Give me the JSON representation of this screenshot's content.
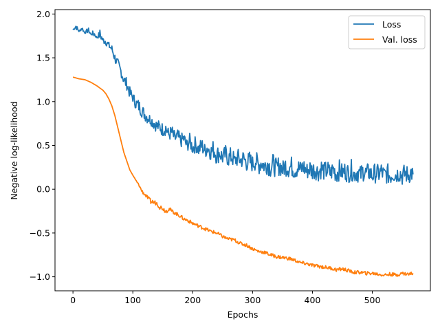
{
  "chart_data": {
    "type": "line",
    "xlabel": "Epochs",
    "ylabel": "Negative log-likelihood",
    "xlim": [
      -30,
      597
    ],
    "ylim": [
      -1.16,
      2.05
    ],
    "xticks": [
      0,
      100,
      200,
      300,
      400,
      500
    ],
    "xtick_labels": [
      "0",
      "100",
      "200",
      "300",
      "400",
      "500"
    ],
    "yticks": [
      -1.0,
      -0.5,
      0.0,
      0.5,
      1.0,
      1.5,
      2.0
    ],
    "ytick_labels": [
      "−1.0",
      "−0.5",
      "0.0",
      "0.5",
      "1.0",
      "1.5",
      "2.0"
    ],
    "grid": false,
    "legend_position": "top-right",
    "series": [
      {
        "name": "Loss",
        "color": "#1f77b4",
        "x": [
          0,
          5,
          10,
          15,
          20,
          25,
          30,
          35,
          40,
          45,
          50,
          55,
          60,
          65,
          70,
          75,
          80,
          85,
          90,
          95,
          100,
          105,
          110,
          115,
          120,
          125,
          130,
          135,
          140,
          145,
          150,
          155,
          160,
          165,
          170,
          175,
          180,
          185,
          190,
          195,
          200,
          205,
          210,
          215,
          220,
          225,
          230,
          235,
          240,
          245,
          250,
          255,
          260,
          265,
          270,
          275,
          280,
          285,
          290,
          295,
          300,
          305,
          310,
          315,
          320,
          325,
          330,
          335,
          340,
          345,
          350,
          355,
          360,
          365,
          370,
          375,
          380,
          385,
          390,
          395,
          400,
          405,
          410,
          415,
          420,
          425,
          430,
          435,
          440,
          445,
          450,
          455,
          460,
          465,
          470,
          475,
          480,
          485,
          490,
          495,
          500,
          505,
          510,
          515,
          520,
          525,
          530,
          535,
          540,
          545,
          550,
          555,
          560,
          565,
          568
        ],
        "y": [
          1.82,
          1.86,
          1.8,
          1.84,
          1.78,
          1.82,
          1.77,
          1.78,
          1.73,
          1.77,
          1.7,
          1.69,
          1.64,
          1.6,
          1.5,
          1.42,
          1.35,
          1.25,
          1.2,
          1.1,
          1.05,
          0.98,
          0.95,
          0.9,
          0.85,
          0.82,
          0.79,
          0.76,
          0.72,
          0.71,
          0.68,
          0.7,
          0.62,
          0.65,
          0.58,
          0.6,
          0.55,
          0.58,
          0.5,
          0.55,
          0.47,
          0.52,
          0.45,
          0.5,
          0.44,
          0.48,
          0.42,
          0.46,
          0.38,
          0.42,
          0.36,
          0.4,
          0.35,
          0.38,
          0.32,
          0.36,
          0.33,
          0.35,
          0.3,
          0.32,
          0.29,
          0.33,
          0.27,
          0.31,
          0.26,
          0.3,
          0.24,
          0.29,
          0.23,
          0.28,
          0.22,
          0.27,
          0.24,
          0.26,
          0.21,
          0.25,
          0.22,
          0.26,
          0.2,
          0.24,
          0.21,
          0.23,
          0.19,
          0.24,
          0.2,
          0.22,
          0.18,
          0.23,
          0.17,
          0.22,
          0.19,
          0.21,
          0.18,
          0.22,
          0.17,
          0.2,
          0.16,
          0.21,
          0.18,
          0.2,
          0.15,
          0.19,
          0.17,
          0.2,
          0.16,
          0.18,
          0.15,
          0.19,
          0.16,
          0.2,
          0.15,
          0.18,
          0.16,
          0.19,
          0.17
        ],
        "noise": [
          0.0,
          0.04,
          0.0,
          0.03,
          0.0,
          0.04,
          0.0,
          0.05,
          0.0,
          0.06,
          0.04,
          0.05,
          0.04,
          0.05,
          0.06,
          0.07,
          0.06,
          0.07,
          0.07,
          0.07,
          0.06,
          0.07,
          0.08,
          0.08,
          0.07,
          0.08,
          0.06,
          0.08,
          0.07,
          0.08,
          0.08,
          0.09,
          0.07,
          0.09,
          0.08,
          0.09,
          0.08,
          0.09,
          0.08,
          0.09,
          0.08,
          0.1,
          0.08,
          0.1,
          0.09,
          0.11,
          0.09,
          0.12,
          0.1,
          0.11,
          0.09,
          0.11,
          0.1,
          0.12,
          0.09,
          0.11,
          0.1,
          0.11,
          0.1,
          0.12,
          0.1,
          0.12,
          0.11,
          0.12,
          0.1,
          0.13,
          0.11,
          0.13,
          0.11,
          0.12,
          0.1,
          0.12,
          0.11,
          0.12,
          0.1,
          0.12,
          0.11,
          0.12,
          0.1,
          0.12,
          0.11,
          0.12,
          0.1,
          0.12,
          0.11,
          0.12,
          0.1,
          0.12,
          0.11,
          0.12,
          0.1,
          0.12,
          0.11,
          0.12,
          0.1,
          0.12,
          0.11,
          0.12,
          0.1,
          0.12,
          0.1,
          0.12,
          0.11,
          0.12,
          0.1,
          0.12,
          0.11,
          0.12,
          0.1,
          0.12,
          0.11,
          0.12,
          0.1,
          0.12,
          0.1
        ]
      },
      {
        "name": "Val. loss",
        "color": "#ff7f0e",
        "x": [
          0,
          10,
          20,
          30,
          40,
          50,
          55,
          60,
          65,
          70,
          75,
          80,
          85,
          90,
          95,
          100,
          105,
          110,
          115,
          120,
          125,
          130,
          135,
          140,
          145,
          150,
          155,
          160,
          165,
          170,
          175,
          180,
          185,
          190,
          195,
          200,
          210,
          220,
          230,
          240,
          250,
          260,
          270,
          280,
          290,
          300,
          310,
          320,
          330,
          340,
          350,
          360,
          370,
          380,
          390,
          400,
          410,
          420,
          430,
          440,
          450,
          460,
          470,
          480,
          490,
          500,
          510,
          520,
          530,
          540,
          550,
          560,
          568
        ],
        "y": [
          1.28,
          1.26,
          1.25,
          1.22,
          1.18,
          1.13,
          1.09,
          1.03,
          0.95,
          0.84,
          0.7,
          0.56,
          0.42,
          0.32,
          0.22,
          0.16,
          0.1,
          0.05,
          -0.02,
          -0.06,
          -0.1,
          -0.14,
          -0.15,
          -0.16,
          -0.2,
          -0.22,
          -0.25,
          -0.22,
          -0.25,
          -0.27,
          -0.29,
          -0.31,
          -0.34,
          -0.35,
          -0.37,
          -0.39,
          -0.42,
          -0.45,
          -0.48,
          -0.5,
          -0.54,
          -0.57,
          -0.58,
          -0.62,
          -0.64,
          -0.68,
          -0.71,
          -0.72,
          -0.75,
          -0.77,
          -0.78,
          -0.79,
          -0.81,
          -0.84,
          -0.85,
          -0.87,
          -0.88,
          -0.89,
          -0.9,
          -0.92,
          -0.91,
          -0.93,
          -0.95,
          -0.95,
          -0.96,
          -0.96,
          -0.97,
          -0.98,
          -0.97,
          -0.98,
          -0.96,
          -0.97,
          -0.96
        ],
        "noise": [
          0,
          0,
          0,
          0,
          0,
          0,
          0,
          0,
          0,
          0,
          0,
          0,
          0,
          0,
          0,
          0,
          0.01,
          0.01,
          0.02,
          0.02,
          0.02,
          0.03,
          0.03,
          0.02,
          0.03,
          0.02,
          0.03,
          0.03,
          0.02,
          0.02,
          0.02,
          0.02,
          0.02,
          0.02,
          0.02,
          0.02,
          0.02,
          0.02,
          0.02,
          0.02,
          0.02,
          0.02,
          0.02,
          0.02,
          0.02,
          0.02,
          0.02,
          0.02,
          0.02,
          0.02,
          0.02,
          0.02,
          0.02,
          0.02,
          0.02,
          0.02,
          0.02,
          0.02,
          0.02,
          0.02,
          0.02,
          0.02,
          0.02,
          0.02,
          0.02,
          0.02,
          0.02,
          0.02,
          0.02,
          0.02,
          0.02,
          0.02,
          0.02
        ]
      }
    ]
  }
}
